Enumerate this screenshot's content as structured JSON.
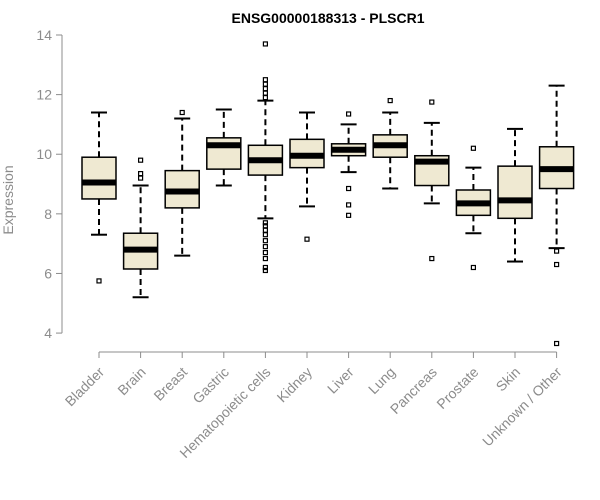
{
  "chart_data": {
    "type": "box",
    "title": "ENSG00000188313 - PLSCR1",
    "xlabel": "",
    "ylabel": "Expression",
    "ylim": [
      3.6,
      14.0
    ],
    "yticks": [
      4,
      6,
      8,
      10,
      12,
      14
    ],
    "box_fill": "#efe9d2",
    "stroke_color": "#000000",
    "axis_color": "#8c8c8c",
    "categories": [
      "Bladder",
      "Brain",
      "Breast",
      "Gastric",
      "Hematopoietic cells",
      "Kidney",
      "Liver",
      "Lung",
      "Pancreas",
      "Prostate",
      "Skin",
      "Unknown / Other"
    ],
    "boxes": [
      {
        "min": 7.3,
        "q1": 8.5,
        "median": 9.05,
        "q3": 9.9,
        "max": 11.4,
        "outliers": [
          5.75
        ]
      },
      {
        "min": 5.2,
        "q1": 6.15,
        "median": 6.8,
        "q3": 7.35,
        "max": 8.95,
        "outliers": [
          9.2,
          9.35,
          9.8
        ]
      },
      {
        "min": 6.6,
        "q1": 8.2,
        "median": 8.75,
        "q3": 9.45,
        "max": 11.2,
        "outliers": [
          11.4
        ]
      },
      {
        "min": 8.95,
        "q1": 9.5,
        "median": 10.3,
        "q3": 10.55,
        "max": 11.5,
        "outliers": []
      },
      {
        "min": 7.85,
        "q1": 9.3,
        "median": 9.8,
        "q3": 10.3,
        "max": 11.8,
        "outliers": [
          6.1,
          6.2,
          6.5,
          6.7,
          6.9,
          7.1,
          7.3,
          7.45,
          7.6,
          7.7,
          11.9,
          12.05,
          12.2,
          12.35,
          12.5,
          13.7
        ]
      },
      {
        "min": 8.25,
        "q1": 9.55,
        "median": 9.95,
        "q3": 10.5,
        "max": 11.4,
        "outliers": [
          7.15
        ]
      },
      {
        "min": 9.4,
        "q1": 9.95,
        "median": 10.15,
        "q3": 10.35,
        "max": 11.0,
        "outliers": [
          7.95,
          8.3,
          8.85,
          11.35
        ]
      },
      {
        "min": 8.85,
        "q1": 9.9,
        "median": 10.3,
        "q3": 10.65,
        "max": 11.4,
        "outliers": [
          11.8
        ]
      },
      {
        "min": 8.35,
        "q1": 8.95,
        "median": 9.75,
        "q3": 9.95,
        "max": 11.05,
        "outliers": [
          6.5,
          11.75
        ]
      },
      {
        "min": 7.35,
        "q1": 7.95,
        "median": 8.35,
        "q3": 8.8,
        "max": 9.55,
        "outliers": [
          6.2,
          10.2
        ]
      },
      {
        "min": 6.4,
        "q1": 7.85,
        "median": 8.45,
        "q3": 9.6,
        "max": 10.85,
        "outliers": []
      },
      {
        "min": 6.85,
        "q1": 8.85,
        "median": 9.5,
        "q3": 10.25,
        "max": 12.3,
        "outliers": [
          3.65,
          6.3,
          6.75
        ]
      }
    ],
    "grid": false,
    "legend": "none"
  }
}
